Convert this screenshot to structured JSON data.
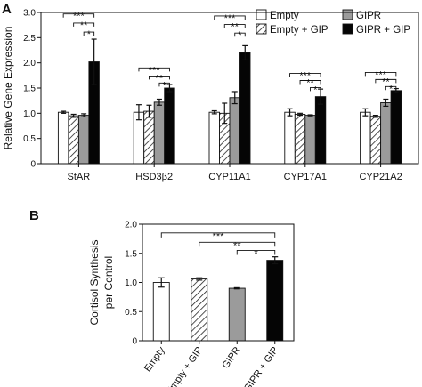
{
  "panels": {
    "a": {
      "letter": "A"
    },
    "b": {
      "letter": "B"
    }
  },
  "legend": {
    "items": [
      {
        "label": "Empty",
        "fill": "white"
      },
      {
        "label": "GIPR",
        "fill": "gray"
      },
      {
        "label": "Empty + GIP",
        "fill": "hatch"
      },
      {
        "label": "GIPR + GIP",
        "fill": "black"
      }
    ]
  },
  "colors": {
    "white": "#ffffff",
    "gray": "#9b9b9b",
    "black": "#050505",
    "axis": "#111111"
  },
  "chart_data": [
    {
      "type": "bar",
      "ylabel": "Relative Gene Expression",
      "ylim": [
        0,
        3.0
      ],
      "yticks": [
        "0",
        "0.5",
        "1.0",
        "1.5",
        "2.0",
        "2.5",
        "3.0"
      ],
      "grid": false,
      "legend_position": "top-right",
      "categories": [
        "StAR",
        "HSD3β2",
        "CYP11A1",
        "CYP17A1",
        "CYP21A2"
      ],
      "series": [
        {
          "name": "Empty",
          "values": [
            1.02,
            1.02,
            1.02,
            1.02,
            1.02
          ],
          "errors": [
            0.02,
            0.15,
            0.03,
            0.07,
            0.07
          ]
        },
        {
          "name": "Empty + GIP",
          "values": [
            0.95,
            1.04,
            1.0,
            0.98,
            0.94
          ],
          "errors": [
            0.03,
            0.12,
            0.2,
            0.02,
            0.02
          ]
        },
        {
          "name": "GIPR",
          "values": [
            0.96,
            1.22,
            1.31,
            0.96,
            1.21
          ],
          "errors": [
            0.03,
            0.06,
            0.12,
            0.01,
            0.07
          ]
        },
        {
          "name": "GIPR + GIP",
          "values": [
            2.02,
            1.5,
            2.2,
            1.33,
            1.45
          ],
          "errors": [
            0.45,
            0.07,
            0.14,
            0.15,
            0.04
          ]
        }
      ],
      "annotations": [
        {
          "group": 0,
          "from": 0,
          "to": 3,
          "y": 2.97,
          "label": "***"
        },
        {
          "group": 0,
          "from": 1,
          "to": 3,
          "y": 2.79,
          "label": "**"
        },
        {
          "group": 0,
          "from": 2,
          "to": 3,
          "y": 2.61,
          "label": "*"
        },
        {
          "group": 1,
          "from": 0,
          "to": 3,
          "y": 1.9,
          "label": "***"
        },
        {
          "group": 1,
          "from": 1,
          "to": 3,
          "y": 1.74,
          "label": "**"
        },
        {
          "group": 1,
          "from": 2,
          "to": 3,
          "y": 1.6,
          "label": "*"
        },
        {
          "group": 2,
          "from": 0,
          "to": 3,
          "y": 2.93,
          "label": "***"
        },
        {
          "group": 2,
          "from": 1,
          "to": 3,
          "y": 2.76,
          "label": "**"
        },
        {
          "group": 2,
          "from": 2,
          "to": 3,
          "y": 2.59,
          "label": "*"
        },
        {
          "group": 3,
          "from": 0,
          "to": 3,
          "y": 1.79,
          "label": "***"
        },
        {
          "group": 3,
          "from": 1,
          "to": 3,
          "y": 1.65,
          "label": "**"
        },
        {
          "group": 3,
          "from": 2,
          "to": 3,
          "y": 1.51,
          "label": "*"
        },
        {
          "group": 4,
          "from": 0,
          "to": 3,
          "y": 1.81,
          "label": "***"
        },
        {
          "group": 4,
          "from": 1,
          "to": 3,
          "y": 1.67,
          "label": "**"
        },
        {
          "group": 4,
          "from": 2,
          "to": 3,
          "y": 1.53,
          "label": "*"
        }
      ]
    },
    {
      "type": "bar",
      "ylabel": [
        "Cortisol Synthesis",
        "per Control"
      ],
      "ylim": [
        0,
        2.0
      ],
      "yticks": [
        "0",
        "0.5",
        "1.0",
        "1.5",
        "2.0"
      ],
      "grid": false,
      "categories": [
        "Empty",
        "Empty + GIP",
        "GIPR",
        "GIPR + GIP"
      ],
      "fills": [
        "white",
        "hatch",
        "gray",
        "black"
      ],
      "values": [
        1.0,
        1.06,
        0.9,
        1.38
      ],
      "errors": [
        0.08,
        0.02,
        0.01,
        0.06
      ],
      "annotations": [
        {
          "from": 0,
          "to": 3,
          "y": 1.85,
          "label": "***"
        },
        {
          "from": 1,
          "to": 3,
          "y": 1.69,
          "label": "**"
        },
        {
          "from": 2,
          "to": 3,
          "y": 1.55,
          "label": "*"
        }
      ]
    }
  ]
}
